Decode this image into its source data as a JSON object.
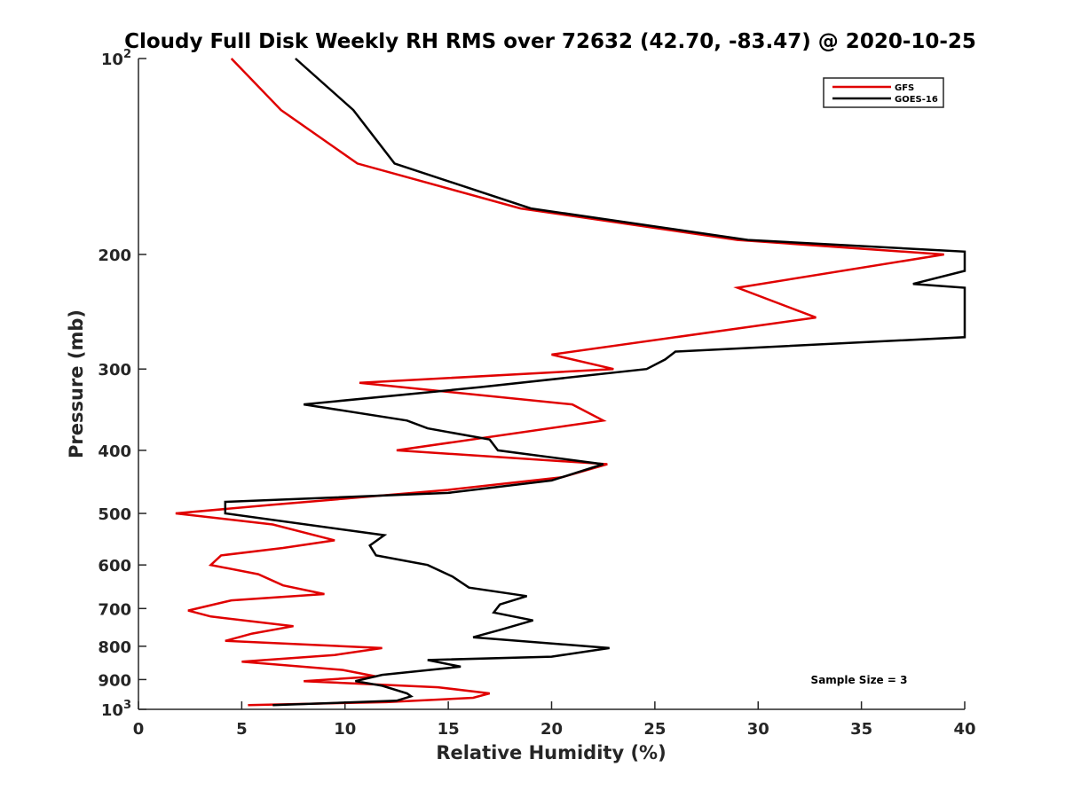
{
  "chart_data": {
    "type": "line",
    "title": "Cloudy Full Disk Weekly RH RMS over 72632 (42.70, -83.47) @ 2020-10-25",
    "xlabel": "Relative Humidity (%)",
    "ylabel": "Pressure (mb)",
    "xlim": [
      0,
      40
    ],
    "ylim": [
      1000,
      100
    ],
    "yscale": "log",
    "y_reversed": true,
    "x_ticks": [
      "0",
      "5",
      "10",
      "15",
      "20",
      "25",
      "30",
      "35",
      "40"
    ],
    "y_ticks": [
      {
        "value": 100,
        "base": "10",
        "exp": "2"
      },
      {
        "value": 200,
        "label": "200"
      },
      {
        "value": 300,
        "label": "300"
      },
      {
        "value": 400,
        "label": "400"
      },
      {
        "value": 500,
        "label": "500"
      },
      {
        "value": 600,
        "label": "600"
      },
      {
        "value": 700,
        "label": "700"
      },
      {
        "value": 800,
        "label": "800"
      },
      {
        "value": 900,
        "label": "900"
      },
      {
        "value": 1000,
        "base": "10",
        "exp": "3"
      }
    ],
    "grid": false,
    "legend_position": "top-right",
    "annotation": "Sample Size = 3",
    "series": [
      {
        "name": "GFS",
        "color": "#e00000",
        "points": [
          {
            "x": 4.5,
            "y": 100
          },
          {
            "x": 6.9,
            "y": 120
          },
          {
            "x": 10.6,
            "y": 145
          },
          {
            "x": 18.5,
            "y": 170
          },
          {
            "x": 29.0,
            "y": 190
          },
          {
            "x": 39.0,
            "y": 200
          },
          {
            "x": 29.0,
            "y": 225
          },
          {
            "x": 32.8,
            "y": 250
          },
          {
            "x": 20.0,
            "y": 285
          },
          {
            "x": 23.0,
            "y": 300
          },
          {
            "x": 10.7,
            "y": 315
          },
          {
            "x": 21.0,
            "y": 340
          },
          {
            "x": 22.5,
            "y": 360
          },
          {
            "x": 12.5,
            "y": 400
          },
          {
            "x": 22.7,
            "y": 420
          },
          {
            "x": 20.5,
            "y": 440
          },
          {
            "x": 15.0,
            "y": 460
          },
          {
            "x": 6.5,
            "y": 485
          },
          {
            "x": 1.8,
            "y": 500
          },
          {
            "x": 6.5,
            "y": 520
          },
          {
            "x": 9.5,
            "y": 550
          },
          {
            "x": 7.0,
            "y": 565
          },
          {
            "x": 4.0,
            "y": 580
          },
          {
            "x": 3.5,
            "y": 600
          },
          {
            "x": 5.8,
            "y": 620
          },
          {
            "x": 7.0,
            "y": 645
          },
          {
            "x": 9.0,
            "y": 665
          },
          {
            "x": 4.5,
            "y": 680
          },
          {
            "x": 2.4,
            "y": 705
          },
          {
            "x": 3.5,
            "y": 720
          },
          {
            "x": 7.5,
            "y": 745
          },
          {
            "x": 5.5,
            "y": 765
          },
          {
            "x": 4.2,
            "y": 785
          },
          {
            "x": 11.8,
            "y": 805
          },
          {
            "x": 9.5,
            "y": 825
          },
          {
            "x": 5.0,
            "y": 845
          },
          {
            "x": 9.9,
            "y": 870
          },
          {
            "x": 11.5,
            "y": 890
          },
          {
            "x": 8.0,
            "y": 905
          },
          {
            "x": 14.5,
            "y": 925
          },
          {
            "x": 17.0,
            "y": 945
          },
          {
            "x": 16.2,
            "y": 960
          },
          {
            "x": 12.0,
            "y": 975
          },
          {
            "x": 5.3,
            "y": 985
          }
        ]
      },
      {
        "name": "GOES-16",
        "color": "#000000",
        "points": [
          {
            "x": 7.6,
            "y": 100
          },
          {
            "x": 10.4,
            "y": 120
          },
          {
            "x": 12.4,
            "y": 145
          },
          {
            "x": 19.0,
            "y": 170
          },
          {
            "x": 29.5,
            "y": 190
          },
          {
            "x": 40.0,
            "y": 198
          },
          {
            "x": 40.0,
            "y": 212
          },
          {
            "x": 37.5,
            "y": 222
          },
          {
            "x": 40.0,
            "y": 225
          },
          {
            "x": 40.0,
            "y": 268
          },
          {
            "x": 26.0,
            "y": 282
          },
          {
            "x": 25.5,
            "y": 290
          },
          {
            "x": 24.6,
            "y": 300
          },
          {
            "x": 16.5,
            "y": 320
          },
          {
            "x": 8.0,
            "y": 340
          },
          {
            "x": 13.0,
            "y": 360
          },
          {
            "x": 14.0,
            "y": 370
          },
          {
            "x": 17.0,
            "y": 385
          },
          {
            "x": 17.4,
            "y": 400
          },
          {
            "x": 22.5,
            "y": 420
          },
          {
            "x": 20.0,
            "y": 445
          },
          {
            "x": 15.0,
            "y": 465
          },
          {
            "x": 4.2,
            "y": 480
          },
          {
            "x": 4.2,
            "y": 500
          },
          {
            "x": 11.9,
            "y": 540
          },
          {
            "x": 11.2,
            "y": 560
          },
          {
            "x": 11.5,
            "y": 580
          },
          {
            "x": 14.0,
            "y": 600
          },
          {
            "x": 15.2,
            "y": 625
          },
          {
            "x": 16.0,
            "y": 650
          },
          {
            "x": 18.8,
            "y": 670
          },
          {
            "x": 17.5,
            "y": 690
          },
          {
            "x": 17.2,
            "y": 710
          },
          {
            "x": 19.1,
            "y": 730
          },
          {
            "x": 17.5,
            "y": 755
          },
          {
            "x": 16.2,
            "y": 775
          },
          {
            "x": 22.8,
            "y": 805
          },
          {
            "x": 20.0,
            "y": 830
          },
          {
            "x": 14.0,
            "y": 840
          },
          {
            "x": 15.6,
            "y": 860
          },
          {
            "x": 11.8,
            "y": 885
          },
          {
            "x": 10.5,
            "y": 905
          },
          {
            "x": 11.8,
            "y": 920
          },
          {
            "x": 13.0,
            "y": 945
          },
          {
            "x": 13.2,
            "y": 955
          },
          {
            "x": 12.5,
            "y": 970
          },
          {
            "x": 6.5,
            "y": 985
          }
        ]
      }
    ]
  }
}
